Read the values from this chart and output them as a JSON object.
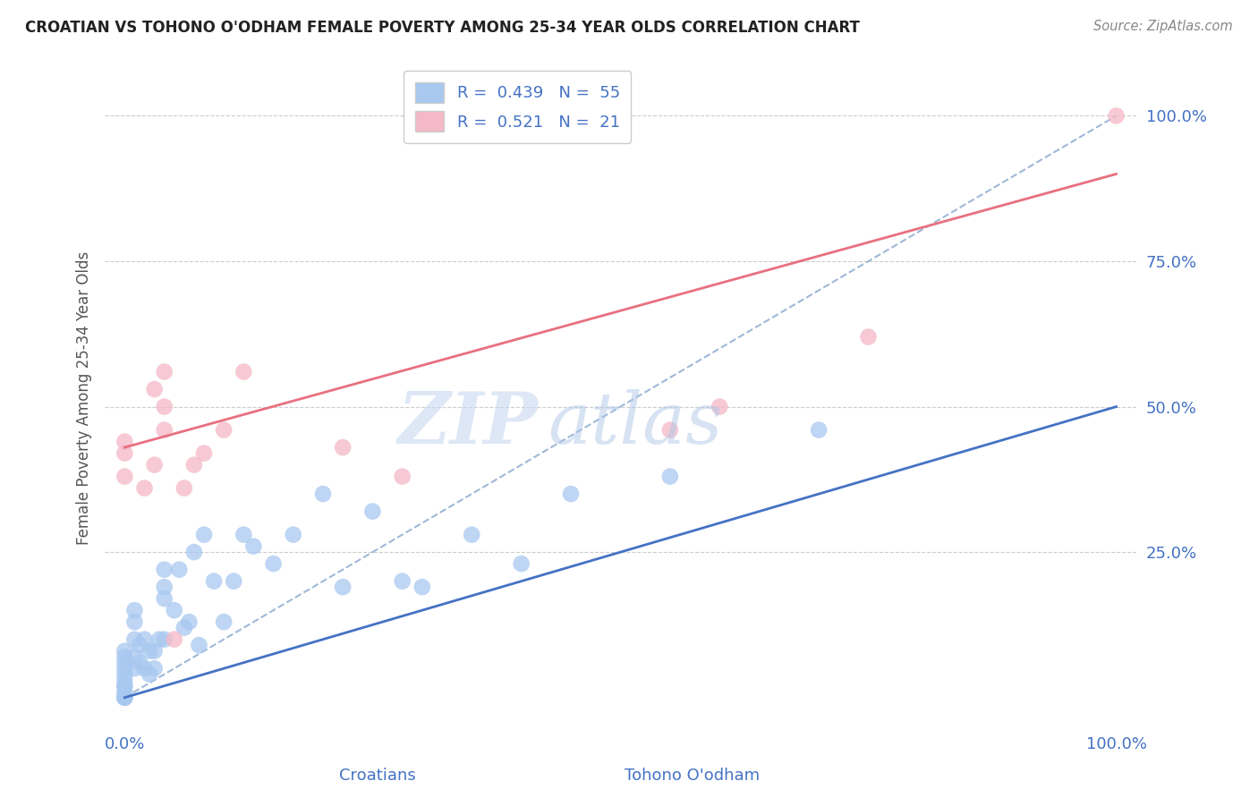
{
  "title": "CROATIAN VS TOHONO O'ODHAM FEMALE POVERTY AMONG 25-34 YEAR OLDS CORRELATION CHART",
  "source": "Source: ZipAtlas.com",
  "ylabel": "Female Poverty Among 25-34 Year Olds",
  "ytick_labels": [
    "25.0%",
    "50.0%",
    "75.0%",
    "100.0%"
  ],
  "ytick_values": [
    0.25,
    0.5,
    0.75,
    1.0
  ],
  "xlim": [
    -0.02,
    1.02
  ],
  "ylim": [
    -0.05,
    1.08
  ],
  "watermark_zip": "ZIP",
  "watermark_atlas": "atlas",
  "legend_entries": [
    {
      "label": "Croatians",
      "R": "0.439",
      "N": "55",
      "color": "#a8c8f0"
    },
    {
      "label": "Tohono O'odham",
      "R": "0.521",
      "N": "21",
      "color": "#f4b8c8"
    }
  ],
  "croatian_x": [
    0.0,
    0.0,
    0.0,
    0.0,
    0.0,
    0.0,
    0.0,
    0.0,
    0.0,
    0.0,
    0.01,
    0.01,
    0.01,
    0.01,
    0.01,
    0.015,
    0.015,
    0.02,
    0.02,
    0.025,
    0.025,
    0.03,
    0.03,
    0.035,
    0.04,
    0.04,
    0.04,
    0.04,
    0.05,
    0.055,
    0.06,
    0.065,
    0.07,
    0.075,
    0.08,
    0.09,
    0.1,
    0.11,
    0.12,
    0.13,
    0.15,
    0.17,
    0.2,
    0.22,
    0.25,
    0.28,
    0.3,
    0.35,
    0.4,
    0.45,
    0.55,
    0.7,
    0.0,
    0.0,
    0.0
  ],
  "croatian_y": [
    0.0,
    0.0,
    0.0,
    0.02,
    0.03,
    0.04,
    0.05,
    0.06,
    0.07,
    0.08,
    0.05,
    0.07,
    0.1,
    0.13,
    0.15,
    0.06,
    0.09,
    0.05,
    0.1,
    0.04,
    0.08,
    0.05,
    0.08,
    0.1,
    0.1,
    0.17,
    0.19,
    0.22,
    0.15,
    0.22,
    0.12,
    0.13,
    0.25,
    0.09,
    0.28,
    0.2,
    0.13,
    0.2,
    0.28,
    0.26,
    0.23,
    0.28,
    0.35,
    0.19,
    0.32,
    0.2,
    0.19,
    0.28,
    0.23,
    0.35,
    0.38,
    0.46,
    0.0,
    0.01,
    0.02
  ],
  "tohono_x": [
    0.0,
    0.0,
    0.0,
    0.02,
    0.03,
    0.03,
    0.04,
    0.04,
    0.04,
    0.05,
    0.06,
    0.07,
    0.08,
    0.1,
    0.12,
    0.22,
    0.28,
    0.55,
    0.6,
    0.75,
    1.0
  ],
  "tohono_y": [
    0.38,
    0.42,
    0.44,
    0.36,
    0.4,
    0.53,
    0.46,
    0.5,
    0.56,
    0.1,
    0.36,
    0.4,
    0.42,
    0.46,
    0.56,
    0.43,
    0.38,
    0.46,
    0.5,
    0.62,
    1.0
  ],
  "blue_line": {
    "x0": 0.0,
    "y0": 0.0,
    "x1": 1.0,
    "y1": 0.5
  },
  "pink_line": {
    "x0": 0.0,
    "y0": 0.43,
    "x1": 1.0,
    "y1": 0.9
  },
  "blue_line_color": "#4472c4",
  "pink_line_color": "#e87080",
  "dot_blue": "#a8c8f0",
  "dot_pink": "#f4b8c8",
  "grid_color": "#cccccc",
  "background_color": "#ffffff",
  "title_color": "#222222",
  "source_color": "#888888",
  "label_color": "#4472c4",
  "watermark_color": "#c8d8f0"
}
